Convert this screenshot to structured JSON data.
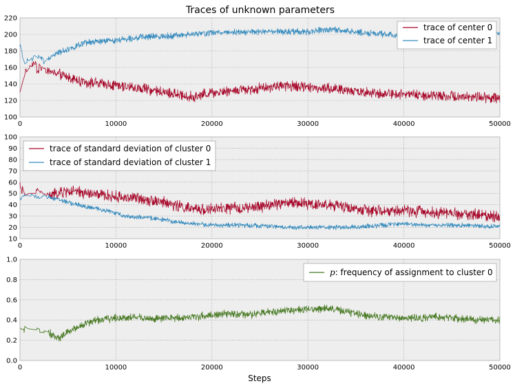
{
  "chart_data": [
    {
      "type": "line",
      "title": "Traces of unknown parameters",
      "xlabel": "",
      "ylabel": "",
      "xlim": [
        0,
        50000
      ],
      "ylim": [
        100,
        220
      ],
      "xticks": [
        0,
        10000,
        20000,
        30000,
        40000,
        50000
      ],
      "yticks": [
        100,
        120,
        140,
        160,
        180,
        200,
        220
      ],
      "grid": true,
      "legend_position": "top-right",
      "series": [
        {
          "name": "trace of center 0",
          "color": "#A60628",
          "points": [
            [
              0,
              130
            ],
            [
              500,
              152
            ],
            [
              1000,
              160
            ],
            [
              1500,
              160
            ],
            [
              2000,
              160
            ],
            [
              2500,
              158
            ],
            [
              3000,
              155
            ],
            [
              4000,
              152
            ],
            [
              5000,
              148
            ],
            [
              7000,
              142
            ],
            [
              10000,
              138
            ],
            [
              12000,
              135
            ],
            [
              14000,
              132
            ],
            [
              16000,
              128
            ],
            [
              18000,
              124
            ],
            [
              20000,
              130
            ],
            [
              22000,
              132
            ],
            [
              24000,
              134
            ],
            [
              26000,
              136
            ],
            [
              28000,
              138
            ],
            [
              30000,
              136
            ],
            [
              32000,
              135
            ],
            [
              34000,
              132
            ],
            [
              36000,
              130
            ],
            [
              38000,
              128
            ],
            [
              40000,
              128
            ],
            [
              42000,
              126
            ],
            [
              44000,
              126
            ],
            [
              46000,
              125
            ],
            [
              48000,
              124
            ],
            [
              50000,
              122
            ]
          ],
          "noise": 5
        },
        {
          "name": "trace of center 1",
          "color": "#348ABD",
          "points": [
            [
              0,
              185
            ],
            [
              500,
              165
            ],
            [
              1000,
              168
            ],
            [
              1500,
              175
            ],
            [
              2000,
              170
            ],
            [
              2500,
              168
            ],
            [
              3000,
              172
            ],
            [
              4000,
              178
            ],
            [
              5000,
              182
            ],
            [
              7000,
              190
            ],
            [
              10000,
              193
            ],
            [
              12000,
              196
            ],
            [
              15000,
              198
            ],
            [
              18000,
              200
            ],
            [
              20000,
              202
            ],
            [
              22000,
              203
            ],
            [
              24000,
              203
            ],
            [
              26000,
              203
            ],
            [
              28000,
              203
            ],
            [
              30000,
              203
            ],
            [
              32000,
              206
            ],
            [
              34000,
              204
            ],
            [
              36000,
              202
            ],
            [
              38000,
              200
            ],
            [
              40000,
              199
            ],
            [
              42000,
              198
            ],
            [
              44000,
              198
            ],
            [
              46000,
              199
            ],
            [
              48000,
              200
            ],
            [
              50000,
              201
            ]
          ],
          "noise": 3
        }
      ]
    },
    {
      "type": "line",
      "title": "",
      "xlabel": "",
      "ylabel": "",
      "xlim": [
        0,
        50000
      ],
      "ylim": [
        10,
        100
      ],
      "xticks": [
        0,
        10000,
        20000,
        30000,
        40000,
        50000
      ],
      "yticks": [
        10,
        20,
        30,
        40,
        50,
        60,
        70,
        80,
        90,
        100
      ],
      "grid": true,
      "legend_position": "top-left",
      "series": [
        {
          "name": "trace of standard deviation of cluster 0",
          "color": "#A60628",
          "points": [
            [
              0,
              60
            ],
            [
              500,
              48
            ],
            [
              1000,
              50
            ],
            [
              2000,
              50
            ],
            [
              3000,
              48
            ],
            [
              4000,
              50
            ],
            [
              5000,
              52
            ],
            [
              7000,
              50
            ],
            [
              10000,
              47
            ],
            [
              12000,
              46
            ],
            [
              14000,
              44
            ],
            [
              16000,
              40
            ],
            [
              18000,
              36
            ],
            [
              20000,
              36
            ],
            [
              22000,
              37
            ],
            [
              24000,
              37
            ],
            [
              26000,
              40
            ],
            [
              28000,
              42
            ],
            [
              30000,
              41
            ],
            [
              32000,
              40
            ],
            [
              34000,
              38
            ],
            [
              36000,
              35
            ],
            [
              38000,
              34
            ],
            [
              40000,
              35
            ],
            [
              42000,
              34
            ],
            [
              44000,
              33
            ],
            [
              46000,
              32
            ],
            [
              48000,
              31
            ],
            [
              50000,
              30
            ]
          ],
          "noise": 4
        },
        {
          "name": "trace of standard deviation of cluster 1",
          "color": "#348ABD",
          "points": [
            [
              0,
              45
            ],
            [
              500,
              50
            ],
            [
              1000,
              48
            ],
            [
              2000,
              47
            ],
            [
              3000,
              47
            ],
            [
              4000,
              45
            ],
            [
              5000,
              42
            ],
            [
              7000,
              38
            ],
            [
              9000,
              35
            ],
            [
              11000,
              30
            ],
            [
              14000,
              28
            ],
            [
              17000,
              24
            ],
            [
              20000,
              22
            ],
            [
              24000,
              22
            ],
            [
              26000,
              21
            ],
            [
              28000,
              20
            ],
            [
              30000,
              20
            ],
            [
              32000,
              20
            ],
            [
              34000,
              20
            ],
            [
              36000,
              21
            ],
            [
              38000,
              22
            ],
            [
              40000,
              23
            ],
            [
              42000,
              22
            ],
            [
              44000,
              22
            ],
            [
              46000,
              22
            ],
            [
              48000,
              21
            ],
            [
              50000,
              21
            ]
          ],
          "noise": 1.6
        }
      ]
    },
    {
      "type": "line",
      "title": "",
      "xlabel": "Steps",
      "ylabel": "",
      "xlim": [
        0,
        50000
      ],
      "ylim": [
        0.0,
        1.0
      ],
      "xticks": [
        0,
        10000,
        20000,
        30000,
        40000,
        50000
      ],
      "yticks": [
        0.0,
        0.2,
        0.4,
        0.6,
        0.8,
        1.0
      ],
      "grid": true,
      "legend_position": "top-right",
      "series": [
        {
          "name": "p: frequency of assignment to cluster 0",
          "color": "#467821",
          "points": [
            [
              0,
              0.32
            ],
            [
              1000,
              0.31
            ],
            [
              2000,
              0.3
            ],
            [
              3000,
              0.28
            ],
            [
              3500,
              0.24
            ],
            [
              4000,
              0.22
            ],
            [
              5000,
              0.28
            ],
            [
              6000,
              0.33
            ],
            [
              7000,
              0.37
            ],
            [
              8000,
              0.4
            ],
            [
              10000,
              0.42
            ],
            [
              12000,
              0.43
            ],
            [
              14000,
              0.41
            ],
            [
              16000,
              0.42
            ],
            [
              18000,
              0.43
            ],
            [
              20000,
              0.45
            ],
            [
              22000,
              0.46
            ],
            [
              24000,
              0.45
            ],
            [
              26000,
              0.48
            ],
            [
              28000,
              0.5
            ],
            [
              30000,
              0.5
            ],
            [
              32000,
              0.52
            ],
            [
              34000,
              0.48
            ],
            [
              36000,
              0.45
            ],
            [
              38000,
              0.43
            ],
            [
              40000,
              0.42
            ],
            [
              42000,
              0.42
            ],
            [
              44000,
              0.43
            ],
            [
              46000,
              0.41
            ],
            [
              48000,
              0.4
            ],
            [
              50000,
              0.4
            ]
          ],
          "noise": 0.03
        }
      ]
    }
  ]
}
